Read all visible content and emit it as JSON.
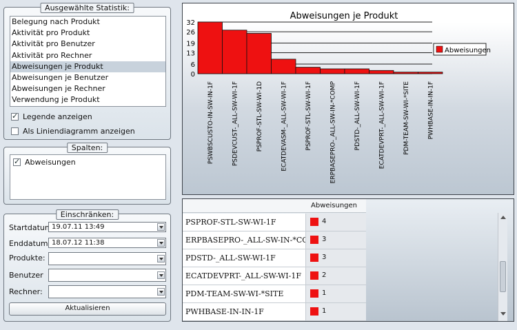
{
  "stats_group": {
    "title": "Ausgewählte Statistik:",
    "items": [
      "Belegung nach Produkt",
      "Aktivität pro Produkt",
      "Aktivität pro Benutzer",
      "Aktivität pro Rechner",
      "Abweisungen je Produkt",
      "Abweisungen je Benutzer",
      "Abweisungen je Rechner",
      "Verwendung je Produkt"
    ],
    "selected_index": 4,
    "legend_label": "Legende anzeigen",
    "legend_checked": true,
    "line_label": "Als Liniendiagramm anzeigen",
    "line_checked": false
  },
  "columns_group": {
    "title": "Spalten:",
    "items": [
      {
        "label": "Abweisungen",
        "checked": true
      }
    ]
  },
  "restrict_group": {
    "title": "Einschränken:",
    "start_label": "Startdatum:",
    "start_value": "19.07.11 13:49",
    "end_label": "Enddatum:",
    "end_value": "18.07.12 11:38",
    "products_label": "Produkte:",
    "users_label": "Benutzer",
    "hosts_label": "Rechner:",
    "refresh_label": "Aktualisieren"
  },
  "chart_data": {
    "type": "bar",
    "title": "Abweisungen je Produkt",
    "categories": [
      "PSWBSCUSTO-IN-SW-IN-1F",
      "PSDEVCUST-_ALL-SW-WI-1F",
      "PSPROF-STL-SW-WI-1D",
      "ECATDEVASM-_ALL-SW-WI-1F",
      "PSPROF-STL-SW-WI-1F",
      "ERPBASEPRO-_ALL-SW-IN-*COMP",
      "PDSTD-_ALL-SW-WI-1F",
      "ECATDEVPRT-_ALL-SW-WI-1F",
      "PDM-TEAM-SW-WI-*SITE",
      "PWHBASE-IN-IN-1F"
    ],
    "series": [
      {
        "name": "Abweisungen",
        "values": [
          32,
          27,
          25,
          9,
          4,
          3,
          3,
          2,
          1,
          1
        ]
      }
    ],
    "yticks": [
      0,
      6,
      13,
      19,
      26,
      32
    ],
    "ylim": [
      0,
      32
    ],
    "legend": "right",
    "bar_color": "#ee1111"
  },
  "table": {
    "column_header": "Abweisungen",
    "rows": [
      {
        "name": "PSPROF-STL-SW-WI-1F",
        "value": "4"
      },
      {
        "name": "ERPBASEPRO-_ALL-SW-IN-*COMP",
        "value": "3"
      },
      {
        "name": "PDSTD-_ALL-SW-WI-1F",
        "value": "3"
      },
      {
        "name": "ECATDEVPRT-_ALL-SW-WI-1F",
        "value": "2"
      },
      {
        "name": "PDM-TEAM-SW-WI-*SITE",
        "value": "1"
      },
      {
        "name": "PWHBASE-IN-IN-1F",
        "value": "1"
      }
    ]
  }
}
